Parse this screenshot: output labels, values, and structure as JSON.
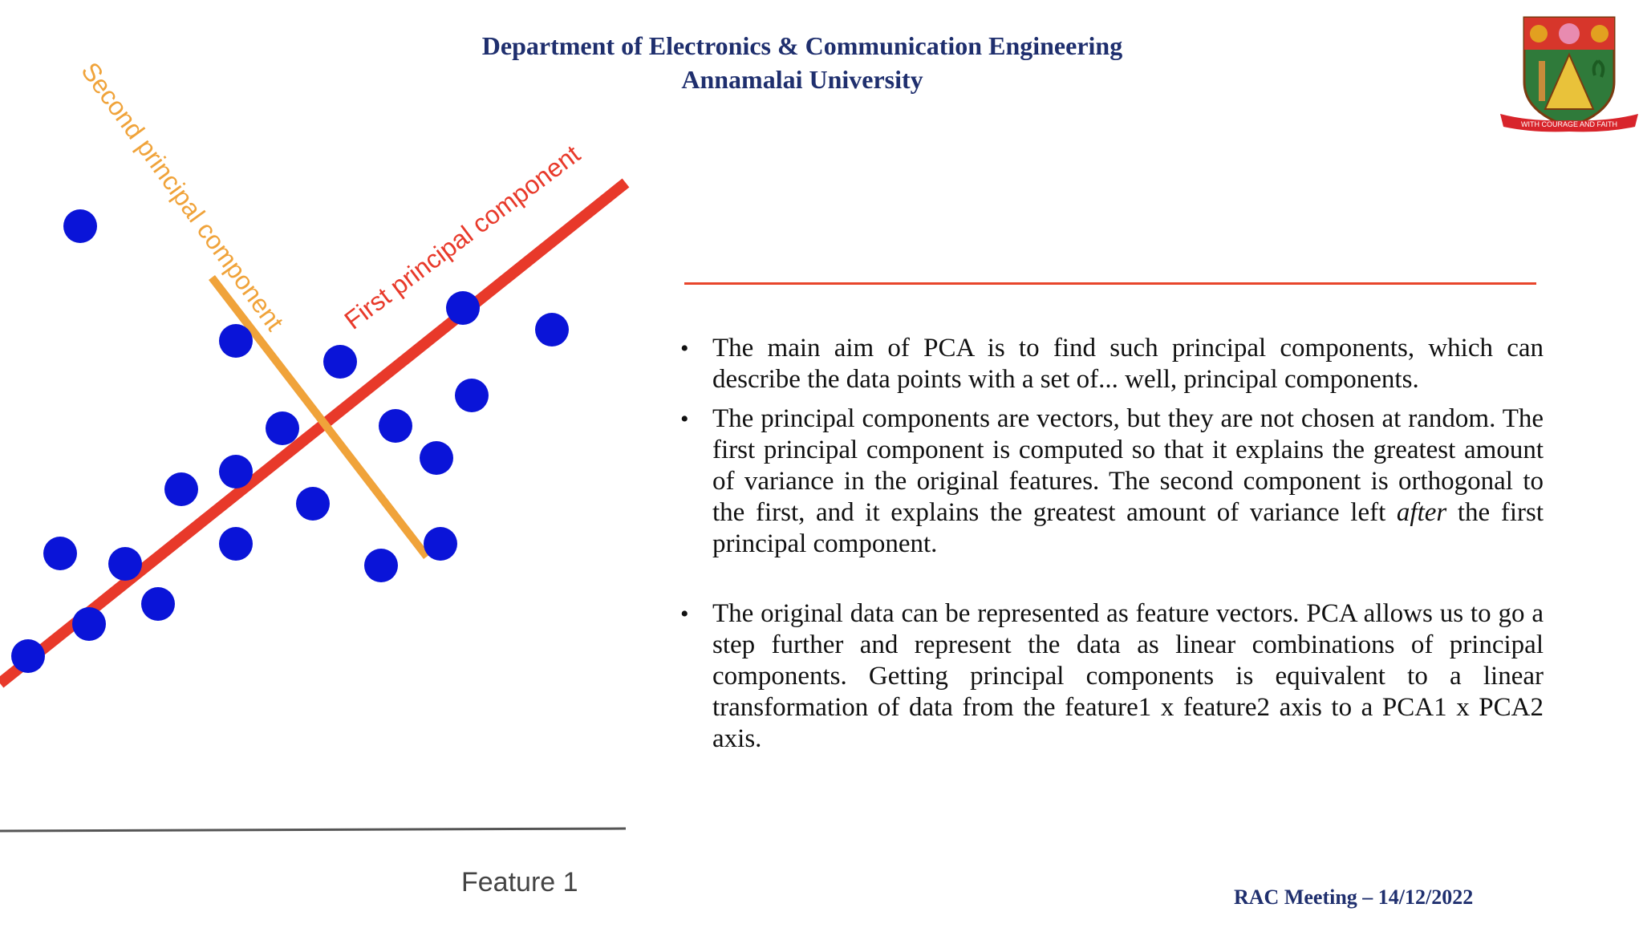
{
  "header": {
    "line1": "Department of Electronics & Communication Engineering",
    "line2": "Annamalai University"
  },
  "logo": {
    "motto": "WITH COURAGE AND FAITH"
  },
  "figure": {
    "first_pc_label": "First principal component",
    "second_pc_label": "Second principal component",
    "x_axis_label": "Feature 1",
    "colors": {
      "points": "#0a14d8",
      "first_pc": "#e8392a",
      "second_pc": "#f0a33a",
      "axis": "#555555"
    }
  },
  "bullets": [
    {
      "text": "The main aim of PCA is to find such principal components, which can describe the data points with a set of... well, principal components."
    },
    {
      "text_before": "The principal components are vectors, but they are not chosen at random. The first principal component is computed so that it explains the greatest amount of variance in the original features. The second component is orthogonal to the first, and it explains the greatest amount of variance left ",
      "text_italic": "after",
      "text_after": " the first principal component."
    },
    {
      "text": "The original data can be represented as feature vectors. PCA allows us to go a step further and represent the data as linear combinations of principal components. Getting principal components is equivalent to a linear transformation of data from the feature1 x feature2 axis to a PCA1 x PCA2 axis."
    }
  ],
  "footer": {
    "text": "RAC Meeting  – 14/12/2022"
  },
  "accent_color": "#e8452b",
  "header_color": "#1f2f6e"
}
